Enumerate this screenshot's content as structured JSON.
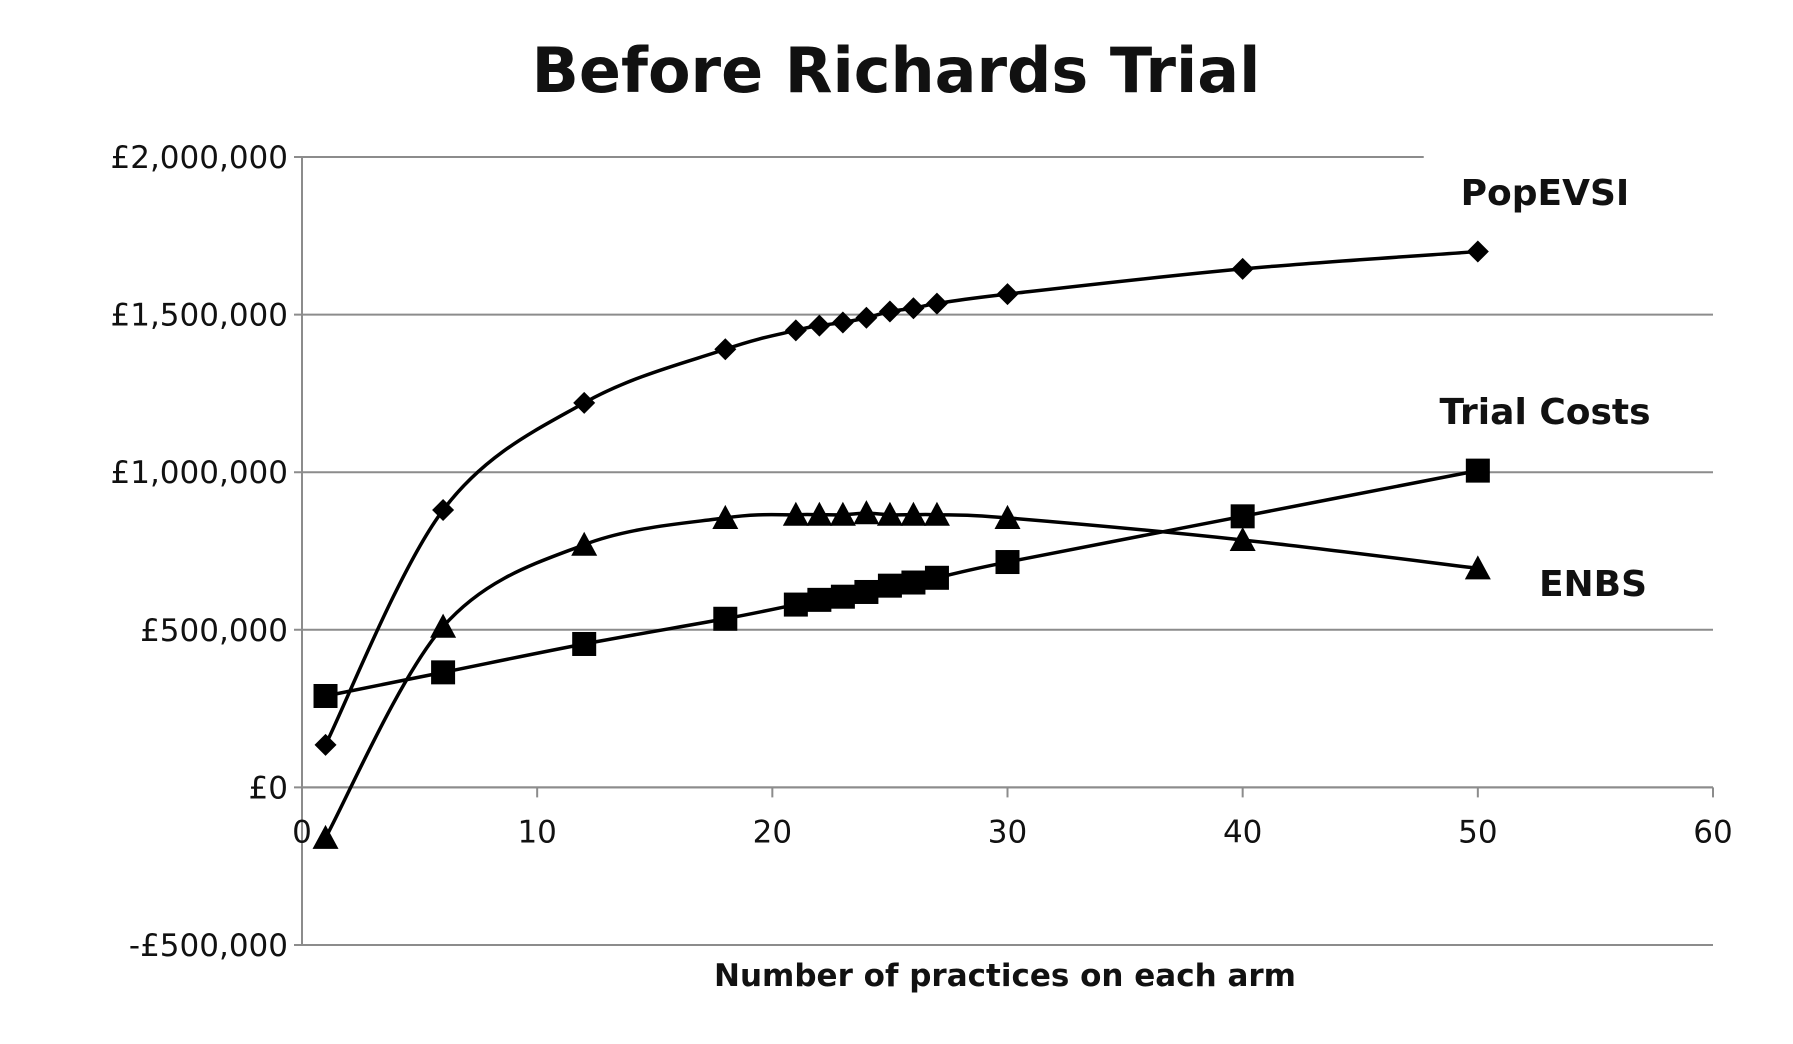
{
  "chart_data": {
    "type": "line",
    "title": "Before Richards Trial",
    "xlabel": "Number of practices on each arm",
    "ylabel": "",
    "xlim": [
      0,
      60
    ],
    "ylim": [
      -500000,
      2000000
    ],
    "x_ticks": [
      0,
      10,
      20,
      30,
      40,
      50,
      60
    ],
    "x_tick_labels": [
      "0",
      "10",
      "20",
      "30",
      "40",
      "50",
      "60"
    ],
    "y_ticks": [
      -500000,
      0,
      500000,
      1000000,
      1500000,
      2000000
    ],
    "y_tick_labels": [
      "-£500,000",
      "£0",
      "£500,000",
      "£1,000,000",
      "£1,500,000",
      "£2,000,000"
    ],
    "grid": "horizontal",
    "legend": "inline labels",
    "series": [
      {
        "name": "PopEVSI",
        "marker": "diamond",
        "x": [
          1,
          6,
          12,
          18,
          21,
          22,
          23,
          24,
          25,
          26,
          27,
          30,
          40,
          50
        ],
        "values": [
          135000,
          880000,
          1220000,
          1390000,
          1450000,
          1465000,
          1475000,
          1490000,
          1510000,
          1520000,
          1535000,
          1565000,
          1645000,
          1700000
        ]
      },
      {
        "name": "Trial Costs",
        "marker": "square",
        "x": [
          1,
          6,
          12,
          18,
          21,
          22,
          23,
          24,
          25,
          26,
          27,
          30,
          40,
          50
        ],
        "values": [
          290000,
          365000,
          455000,
          535000,
          580000,
          595000,
          605000,
          620000,
          640000,
          650000,
          665000,
          715000,
          860000,
          1005000
        ]
      },
      {
        "name": "ENBS",
        "marker": "triangle",
        "x": [
          1,
          6,
          12,
          18,
          21,
          22,
          23,
          24,
          25,
          26,
          27,
          30,
          40,
          50
        ],
        "values": [
          -160000,
          510000,
          770000,
          855000,
          865000,
          865000,
          865000,
          870000,
          865000,
          865000,
          865000,
          855000,
          785000,
          695000
        ]
      }
    ]
  }
}
